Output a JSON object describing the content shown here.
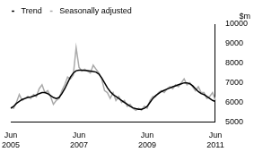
{
  "chart_data": {
    "type": "line",
    "y_label": "$m",
    "categories": [
      "Jun 2005",
      null,
      null,
      null,
      null,
      null,
      null,
      null,
      null,
      null,
      null,
      null,
      null,
      null,
      null,
      null,
      null,
      null,
      null,
      null,
      null,
      null,
      null,
      null,
      "Jun 2007",
      null,
      null,
      null,
      null,
      null,
      null,
      null,
      null,
      null,
      null,
      null,
      null,
      null,
      null,
      null,
      null,
      null,
      null,
      null,
      null,
      null,
      null,
      null,
      "Jun 2009",
      null,
      null,
      null,
      null,
      null,
      null,
      null,
      null,
      null,
      null,
      null,
      null,
      null,
      null,
      null,
      null,
      null,
      null,
      null,
      null,
      null,
      null,
      null,
      "Jun 2011"
    ],
    "series": [
      {
        "name": "Trend",
        "color": "#000000",
        "values": [
          5700,
          5800,
          5950,
          6050,
          6150,
          6200,
          6250,
          6280,
          6320,
          6380,
          6450,
          6500,
          6500,
          6450,
          6350,
          6250,
          6200,
          6250,
          6450,
          6700,
          7000,
          7300,
          7500,
          7620,
          7650,
          7650,
          7640,
          7620,
          7600,
          7580,
          7550,
          7450,
          7250,
          7000,
          6750,
          6550,
          6400,
          6300,
          6200,
          6100,
          6000,
          5900,
          5800,
          5720,
          5680,
          5650,
          5650,
          5700,
          5800,
          6000,
          6200,
          6350,
          6450,
          6550,
          6620,
          6680,
          6740,
          6800,
          6850,
          6900,
          6950,
          7000,
          7000,
          6950,
          6850,
          6700,
          6550,
          6450,
          6400,
          6300,
          6200,
          6100,
          6050
        ]
      },
      {
        "name": "Seasonally adjusted",
        "color": "#aaaaaa",
        "values": [
          5750,
          5700,
          6000,
          6400,
          6100,
          6200,
          6300,
          6200,
          6400,
          6300,
          6700,
          6900,
          6500,
          6600,
          6300,
          5900,
          6100,
          6200,
          6600,
          6900,
          7300,
          7200,
          7400,
          8800,
          7800,
          7600,
          7700,
          7600,
          7500,
          7900,
          7700,
          7500,
          7200,
          6600,
          6500,
          6200,
          6500,
          6100,
          6300,
          6000,
          6100,
          5800,
          5900,
          5700,
          5600,
          5700,
          5600,
          5800,
          5700,
          6100,
          6300,
          6300,
          6500,
          6600,
          6500,
          6700,
          6800,
          6700,
          6900,
          6800,
          7000,
          7200,
          6900,
          7000,
          6800,
          6600,
          6800,
          6500,
          6500,
          6200,
          6300,
          6500,
          6100
        ]
      }
    ],
    "ylim": [
      5000,
      10000
    ],
    "yticks": [
      5000,
      6000,
      7000,
      8000,
      9000,
      10000
    ],
    "grid": false,
    "legend": "top-left"
  }
}
